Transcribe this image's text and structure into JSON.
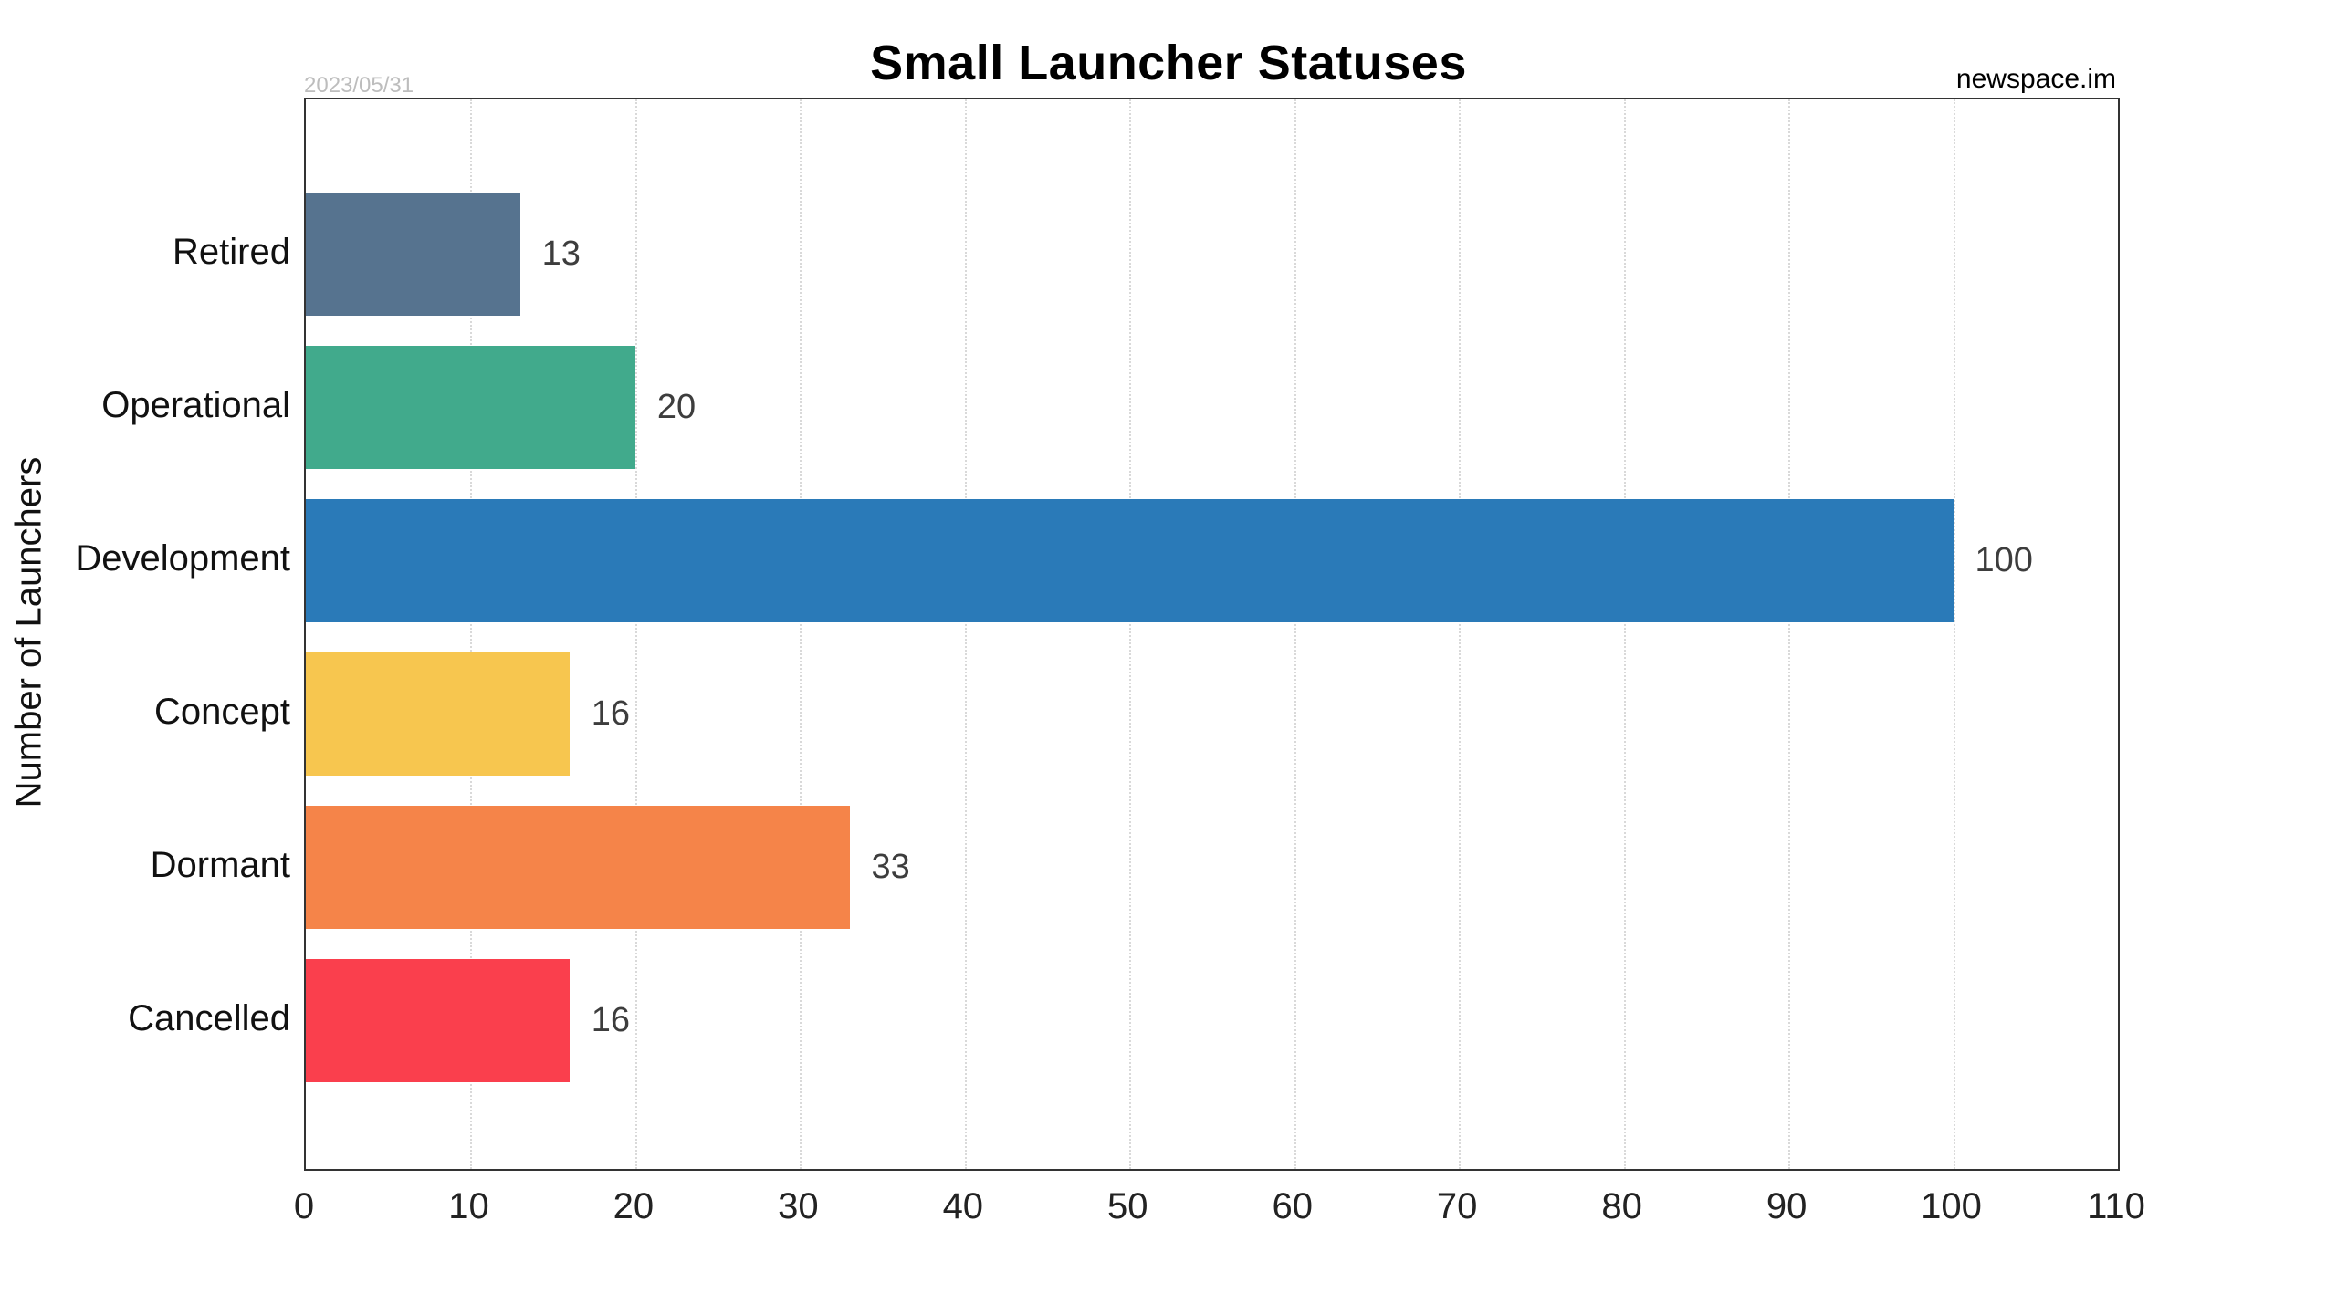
{
  "header": {
    "title": "Small Launcher Statuses",
    "date": "2023/05/31",
    "source": "newspace.im"
  },
  "chart_data": {
    "type": "bar",
    "orientation": "horizontal",
    "title": "Small Launcher Statuses",
    "xlabel": "",
    "ylabel": "Number of Launchers",
    "categories": [
      "Retired",
      "Operational",
      "Development",
      "Concept",
      "Dormant",
      "Cancelled"
    ],
    "values": [
      13,
      20,
      100,
      16,
      33,
      16
    ],
    "bar_colors": [
      "#56738f",
      "#41aa8c",
      "#2a7ab8",
      "#f7c64f",
      "#f58449",
      "#fa3f4d"
    ],
    "xlim": [
      0,
      110
    ],
    "xticks": [
      0,
      10,
      20,
      30,
      40,
      50,
      60,
      70,
      80,
      90,
      100,
      110
    ],
    "grid": "vertical-dotted",
    "legend": "none",
    "annotations": [
      "2023/05/31",
      "newspace.im"
    ]
  },
  "colors": {
    "background": "#ffffff",
    "axis_border": "#333333",
    "grid_line": "#d9d9d9",
    "value_label": "#3d3d3d",
    "date_label": "#bdbdbd",
    "text": "#111111"
  }
}
